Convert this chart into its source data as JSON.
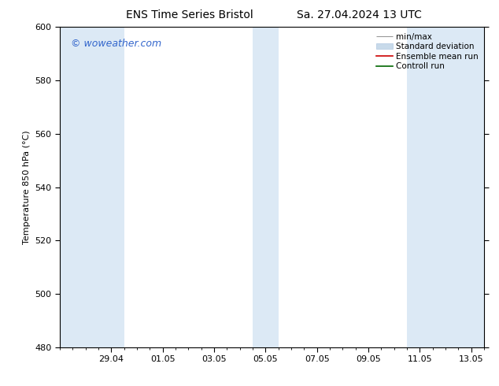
{
  "title_left": "ENS Time Series Bristol",
  "title_right": "Sa. 27.04.2024 13 UTC",
  "ylabel": "Temperature 850 hPa (°C)",
  "ylim": [
    480,
    600
  ],
  "yticks": [
    480,
    500,
    520,
    540,
    560,
    580,
    600
  ],
  "xtick_labels": [
    "29.04",
    "01.05",
    "03.05",
    "05.05",
    "07.05",
    "09.05",
    "11.05",
    "13.05"
  ],
  "watermark": "© woweather.com",
  "watermark_color": "#3366cc",
  "bg_color": "#ffffff",
  "plot_bg_color": "#ffffff",
  "shade_color": "#dce9f5",
  "legend_items": [
    {
      "label": "min/max"
    },
    {
      "label": "Standard deviation"
    },
    {
      "label": "Ensemble mean run"
    },
    {
      "label": "Controll run"
    }
  ],
  "font_size_title": 10,
  "font_size_tick": 8,
  "font_size_legend": 7.5,
  "font_size_watermark": 9
}
